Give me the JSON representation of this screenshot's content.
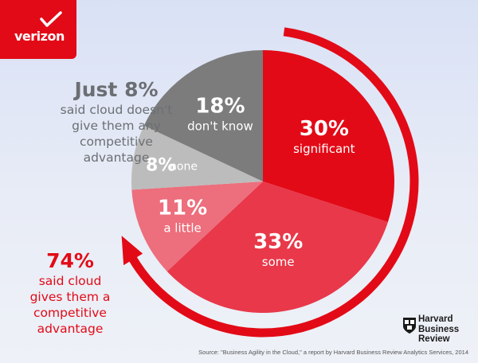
{
  "brand": {
    "logo_text": "verizon",
    "brand_color": "#e30a17"
  },
  "chart_data": {
    "type": "pie",
    "slices": [
      {
        "pct_label": "30%",
        "label": "significant",
        "value": 30,
        "color": "#e30a17"
      },
      {
        "pct_label": "33%",
        "label": "some",
        "value": 33,
        "color": "#e8384a"
      },
      {
        "pct_label": "11%",
        "label": "a little",
        "value": 11,
        "color": "#ed6e7c"
      },
      {
        "pct_label": "8%",
        "label": "none",
        "value": 8,
        "color": "#bcbcbc"
      },
      {
        "pct_label": "18%",
        "label": "don't know",
        "value": 18,
        "color": "#7c7c7c"
      }
    ]
  },
  "notes": {
    "top": {
      "big": "Just 8%",
      "lines": [
        "said cloud doesn't",
        "give them any",
        "competitive",
        "advantage"
      ]
    },
    "bottom": {
      "big": "74%",
      "lines": [
        "said cloud",
        "gives them a",
        "competitive",
        "advantage"
      ]
    }
  },
  "footer": {
    "hbr_lines": [
      "Harvard",
      "Business",
      "Review"
    ],
    "source": "Source: \"Business Agility in the Cloud,\" a report by Harvard Business Review Analytics Services, 2014"
  }
}
